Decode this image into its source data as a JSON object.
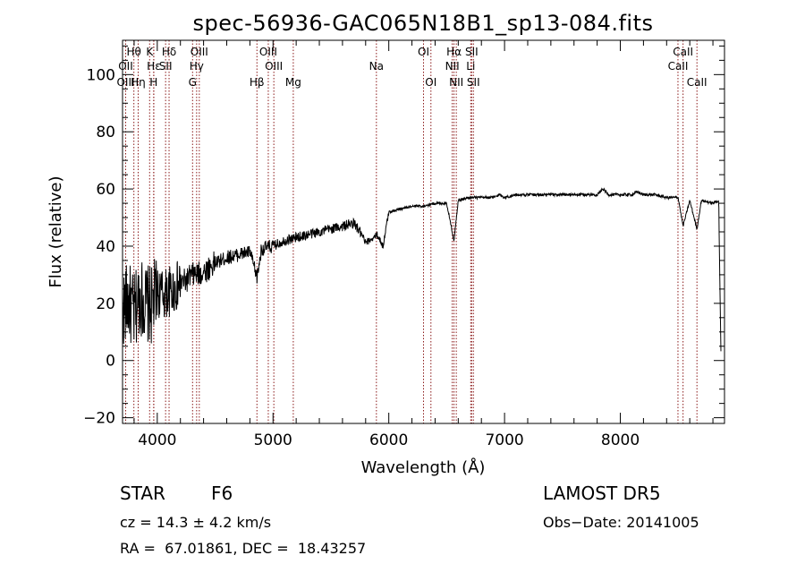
{
  "chart_data": {
    "type": "line",
    "title": "spec-56936-GAC065N18B1_sp13-084.fits",
    "xlabel": "Wavelength (Å)",
    "ylabel": "Flux (relative)",
    "xlim": [
      3700,
      8900
    ],
    "ylim": [
      -22,
      112
    ],
    "xticks": [
      4000,
      5000,
      6000,
      7000,
      8000
    ],
    "xtick_labels": [
      "4000",
      "5000",
      "6000",
      "7000",
      "8000"
    ],
    "yticks": [
      -20,
      0,
      20,
      40,
      60,
      80,
      100
    ],
    "ytick_labels": [
      "−20",
      "0",
      "20",
      "40",
      "60",
      "80",
      "100"
    ],
    "grid": false,
    "series": [
      {
        "x": [
          3700,
          3750,
          3800,
          3850,
          3900,
          3950,
          4000,
          4050,
          4100,
          4150,
          4200,
          4250,
          4300,
          4350,
          4400,
          4500,
          4600,
          4700,
          4800,
          4862,
          4900,
          5000,
          5100,
          5200,
          5300,
          5400,
          5500,
          5600,
          5700,
          5750,
          5800,
          5900,
          5950,
          6000,
          6100,
          6200,
          6300,
          6400,
          6500,
          6563,
          6600,
          6700,
          6800,
          6900,
          6960,
          7000,
          7100,
          7200,
          7300,
          7400,
          7500,
          7600,
          7700,
          7800,
          7850,
          7900,
          8000,
          8100,
          8150,
          8200,
          8300,
          8400,
          8500,
          8542,
          8600,
          8662,
          8700,
          8800,
          8850,
          8870
        ],
        "y": [
          18,
          21,
          16,
          23,
          20,
          19,
          24,
          23,
          24,
          25,
          27,
          28,
          30,
          30,
          31,
          34,
          36,
          37,
          38,
          29,
          39,
          40,
          42,
          43,
          44,
          45,
          46,
          47,
          48,
          45,
          41,
          44,
          40,
          52,
          53,
          54,
          54,
          55,
          55,
          42,
          56,
          57,
          57,
          57,
          58,
          57,
          58,
          58,
          58,
          58,
          58,
          58,
          58,
          58,
          60,
          58,
          58,
          58,
          59,
          58,
          58,
          57,
          57,
          47,
          56,
          46,
          56,
          55,
          56,
          0
        ]
      }
    ],
    "line_color": "#000000",
    "line_marker_color": "#8b1a1a",
    "spectral_lines": [
      {
        "label": "Hθ",
        "wavelength": 3798,
        "row": 1
      },
      {
        "label": "K",
        "wavelength": 3934,
        "row": 1
      },
      {
        "label": "Hδ",
        "wavelength": 4102,
        "row": 1
      },
      {
        "label": "OIII",
        "wavelength": 4363,
        "row": 1
      },
      {
        "label": "OIII",
        "wavelength": 4959,
        "row": 1
      },
      {
        "label": "OI",
        "wavelength": 6300,
        "row": 1
      },
      {
        "label": "Hα",
        "wavelength": 6563,
        "row": 1
      },
      {
        "label": "SII",
        "wavelength": 6716,
        "row": 1
      },
      {
        "label": "CaII",
        "wavelength": 8542,
        "row": 1
      },
      {
        "label": "OII",
        "wavelength": 3727,
        "row": 2
      },
      {
        "label": "Hε",
        "wavelength": 3970,
        "row": 2
      },
      {
        "label": "SII",
        "wavelength": 4072,
        "row": 2
      },
      {
        "label": "Hγ",
        "wavelength": 4340,
        "row": 2
      },
      {
        "label": "OIII",
        "wavelength": 5007,
        "row": 2
      },
      {
        "label": "Na",
        "wavelength": 5893,
        "row": 2
      },
      {
        "label": "NII",
        "wavelength": 6548,
        "row": 2
      },
      {
        "label": "Li",
        "wavelength": 6708,
        "row": 2
      },
      {
        "label": "CaII",
        "wavelength": 8498,
        "row": 2
      },
      {
        "label": "OIII",
        "wavelength": 3727,
        "row": 3
      },
      {
        "label": "Hη",
        "wavelength": 3835,
        "row": 3
      },
      {
        "label": "H",
        "wavelength": 3969,
        "row": 3
      },
      {
        "label": "G",
        "wavelength": 4305,
        "row": 3
      },
      {
        "label": "Hβ",
        "wavelength": 4861,
        "row": 3
      },
      {
        "label": "Mg",
        "wavelength": 5175,
        "row": 3
      },
      {
        "label": "OI",
        "wavelength": 6364,
        "row": 3
      },
      {
        "label": "NII",
        "wavelength": 6583,
        "row": 3
      },
      {
        "label": "SII",
        "wavelength": 6731,
        "row": 3
      },
      {
        "label": "CaII",
        "wavelength": 8662,
        "row": 3
      }
    ]
  },
  "info": {
    "object_class": "STAR",
    "subclass": "F6",
    "survey": "LAMOST DR5",
    "redshift": "cz = 14.3 ± 4.2 km/s",
    "obs_date": "Obs−Date: 20141005",
    "coordinates": "RA =  67.01861, DEC =  18.43257"
  }
}
